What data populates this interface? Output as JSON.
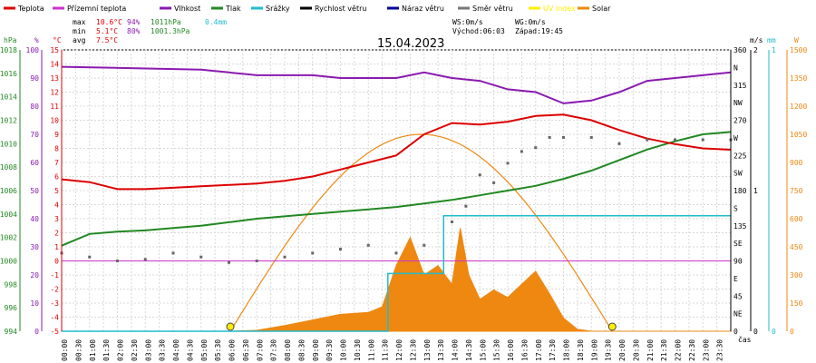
{
  "title": "15.04.2023",
  "legend": [
    {
      "label": "Teplota",
      "color": "#dd0000"
    },
    {
      "label": "Přízemní teplota",
      "color": "#cc33cc"
    },
    {
      "label": "Vlhkost",
      "color": "#8a1ab0"
    },
    {
      "label": "Tlak",
      "color": "#228822"
    },
    {
      "label": "Srážky",
      "color": "#22bbcc"
    },
    {
      "label": "Rychlost větru",
      "color": "#000000"
    },
    {
      "label": "Náraz větru",
      "color": "#000099"
    },
    {
      "label": "Směr větru",
      "color": "#777777"
    },
    {
      "label": "UV index",
      "color": "#ffee00"
    },
    {
      "label": "Solar",
      "color": "#ee8811"
    }
  ],
  "stats": {
    "max_label": "max",
    "min_label": "min",
    "avg_label": "avg",
    "max_temp": "10.6°C",
    "max_hum": "94%",
    "max_press": "1011hPa",
    "max_rain": "0.4mm",
    "min_temp": "5.1°C",
    "min_hum": "80%",
    "min_press": "1001.3hPa",
    "avg_temp": "7.5°C",
    "ws": "WS:0m/s",
    "wg": "WG:0m/s",
    "sunrise": "Východ:06:03",
    "sunset": "Západ:19:45"
  },
  "axes": {
    "hpa_label": "hPa",
    "pct_label": "%",
    "c_label": "°C",
    "ms_label": "m/s",
    "mm_label": "mm",
    "w_label": "W",
    "x_label": "čas",
    "hpa_ticks": [
      "1018",
      "1016",
      "1014",
      "1012",
      "1010",
      "1008",
      "1006",
      "1004",
      "1002",
      "1000",
      "998",
      "996",
      "994"
    ],
    "pct_ticks": [
      "100",
      "90",
      "80",
      "70",
      "60",
      "50",
      "40",
      "30",
      "20",
      "10",
      "0"
    ],
    "c_ticks": [
      "15",
      "14",
      "13",
      "12",
      "11",
      "10",
      "9",
      "8",
      "7",
      "6",
      "5",
      "4",
      "3",
      "2",
      "1",
      "0",
      "-1",
      "-2",
      "-3",
      "-4",
      "-5"
    ],
    "dir_ticks": [
      "360",
      "N",
      "315",
      "NW",
      "270",
      "W",
      "225",
      "SW",
      "180",
      "S",
      "135",
      "SE",
      "90",
      "E",
      "45",
      "NE",
      "0"
    ],
    "ms_ticks": [
      "2",
      "1",
      "0"
    ],
    "mm_ticks": [
      "1",
      "0"
    ],
    "w_ticks": [
      "1500",
      "1350",
      "1200",
      "1050",
      "900",
      "750",
      "600",
      "450",
      "300",
      "150",
      "0"
    ],
    "x_ticks": [
      "00:00",
      "00:30",
      "01:00",
      "01:30",
      "02:00",
      "02:30",
      "03:00",
      "03:30",
      "04:00",
      "04:30",
      "05:00",
      "05:30",
      "06:00",
      "06:30",
      "07:00",
      "07:30",
      "08:00",
      "08:30",
      "09:00",
      "09:30",
      "10:00",
      "10:30",
      "11:00",
      "11:30",
      "12:00",
      "12:30",
      "13:00",
      "13:30",
      "14:00",
      "14:30",
      "15:00",
      "15:30",
      "16:00",
      "16:30",
      "17:00",
      "17:30",
      "18:00",
      "18:30",
      "19:00",
      "19:30",
      "20:00",
      "20:30",
      "21:00",
      "21:30",
      "22:00",
      "22:30",
      "23:00",
      "23:30"
    ]
  },
  "chart_data": {
    "type": "line",
    "x_unit": "hours",
    "temperature_c": [
      [
        0,
        5.8
      ],
      [
        1,
        5.6
      ],
      [
        2,
        5.1
      ],
      [
        3,
        5.1
      ],
      [
        4,
        5.2
      ],
      [
        5,
        5.3
      ],
      [
        6,
        5.4
      ],
      [
        7,
        5.5
      ],
      [
        8,
        5.7
      ],
      [
        9,
        6.0
      ],
      [
        10,
        6.5
      ],
      [
        11,
        7.0
      ],
      [
        12,
        7.5
      ],
      [
        13,
        9.0
      ],
      [
        14,
        9.8
      ],
      [
        15,
        9.7
      ],
      [
        16,
        9.9
      ],
      [
        17,
        10.3
      ],
      [
        18,
        10.4
      ],
      [
        19,
        10.0
      ],
      [
        20,
        9.3
      ],
      [
        21,
        8.7
      ],
      [
        22,
        8.3
      ],
      [
        23,
        8.0
      ],
      [
        24,
        7.9
      ]
    ],
    "ground_temp_c": [
      [
        0,
        0
      ],
      [
        24,
        0
      ]
    ],
    "humidity_pct": [
      [
        0,
        94
      ],
      [
        5,
        93
      ],
      [
        6,
        92
      ],
      [
        7,
        91
      ],
      [
        8,
        91
      ],
      [
        9,
        91
      ],
      [
        10,
        90
      ],
      [
        11,
        90
      ],
      [
        12,
        90
      ],
      [
        13,
        92
      ],
      [
        14,
        90
      ],
      [
        15,
        89
      ],
      [
        16,
        86
      ],
      [
        17,
        85
      ],
      [
        18,
        81
      ],
      [
        19,
        82
      ],
      [
        20,
        85
      ],
      [
        21,
        89
      ],
      [
        22,
        90
      ],
      [
        23,
        91
      ],
      [
        24,
        92
      ]
    ],
    "pressure_hpa": [
      [
        0,
        1001.3
      ],
      [
        1,
        1002.3
      ],
      [
        2,
        1002.5
      ],
      [
        3,
        1002.6
      ],
      [
        4,
        1002.8
      ],
      [
        5,
        1003.0
      ],
      [
        6,
        1003.3
      ],
      [
        7,
        1003.6
      ],
      [
        8,
        1003.8
      ],
      [
        9,
        1004.0
      ],
      [
        10,
        1004.2
      ],
      [
        11,
        1004.4
      ],
      [
        12,
        1004.6
      ],
      [
        13,
        1004.9
      ],
      [
        14,
        1005.2
      ],
      [
        15,
        1005.6
      ],
      [
        16,
        1006.0
      ],
      [
        17,
        1006.4
      ],
      [
        18,
        1007.0
      ],
      [
        19,
        1007.7
      ],
      [
        20,
        1008.6
      ],
      [
        21,
        1009.5
      ],
      [
        22,
        1010.2
      ],
      [
        23,
        1010.8
      ],
      [
        24,
        1011.0
      ]
    ],
    "rain_mm": [
      [
        0,
        0
      ],
      [
        11.7,
        0
      ],
      [
        11.7,
        0.2
      ],
      [
        13.7,
        0.2
      ],
      [
        13.7,
        0.4
      ],
      [
        24,
        0.4
      ]
    ],
    "wind_dir_deg": [
      [
        0,
        100
      ],
      [
        1,
        95
      ],
      [
        2,
        90
      ],
      [
        3,
        92
      ],
      [
        4,
        100
      ],
      [
        5,
        95
      ],
      [
        6,
        88
      ],
      [
        7,
        90
      ],
      [
        8,
        95
      ],
      [
        9,
        100
      ],
      [
        10,
        105
      ],
      [
        11,
        110
      ],
      [
        12,
        100
      ],
      [
        13,
        110
      ],
      [
        14,
        140
      ],
      [
        14.5,
        160
      ],
      [
        15,
        200
      ],
      [
        15.5,
        190
      ],
      [
        16,
        215
      ],
      [
        16.5,
        230
      ],
      [
        17,
        235
      ],
      [
        17.5,
        248
      ],
      [
        18,
        248
      ],
      [
        19,
        248
      ],
      [
        20,
        240
      ],
      [
        21,
        245
      ],
      [
        22,
        245
      ],
      [
        23,
        245
      ],
      [
        24,
        245
      ]
    ],
    "solar_wm2": [
      [
        0,
        0
      ],
      [
        6,
        0
      ],
      [
        7,
        5
      ],
      [
        8,
        30
      ],
      [
        9,
        60
      ],
      [
        10,
        90
      ],
      [
        11,
        100
      ],
      [
        11.5,
        130
      ],
      [
        12,
        350
      ],
      [
        12.5,
        500
      ],
      [
        13,
        300
      ],
      [
        13.5,
        350
      ],
      [
        14,
        250
      ],
      [
        14.3,
        550
      ],
      [
        14.6,
        300
      ],
      [
        15,
        170
      ],
      [
        15.5,
        220
      ],
      [
        16,
        180
      ],
      [
        16.5,
        250
      ],
      [
        17,
        320
      ],
      [
        17.5,
        200
      ],
      [
        18,
        70
      ],
      [
        18.5,
        10
      ],
      [
        19,
        0
      ],
      [
        24,
        0
      ]
    ],
    "solar_theoretical_wm2": [
      [
        6.05,
        0
      ],
      [
        13,
        1050
      ],
      [
        19.75,
        0
      ]
    ],
    "ylim_temp": [
      -5,
      15
    ],
    "ylim_press": [
      994,
      1018
    ],
    "ylim_hum": [
      0,
      100
    ],
    "ylim_dir": [
      0,
      360
    ],
    "ylim_solar": [
      0,
      1500
    ]
  }
}
